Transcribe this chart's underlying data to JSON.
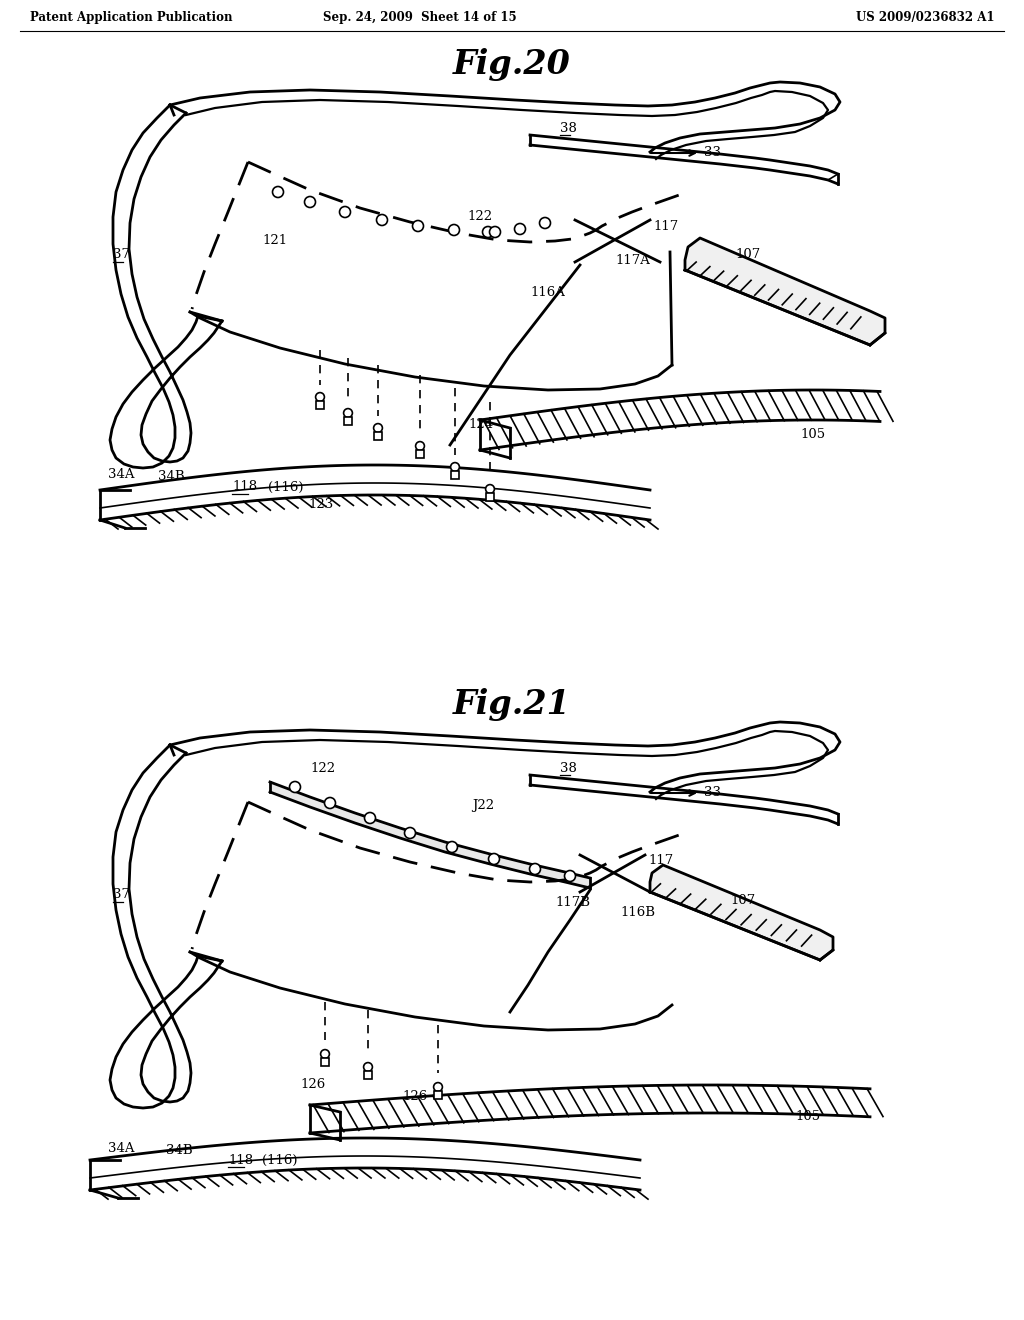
{
  "bg_color": "#ffffff",
  "line_color": "#000000",
  "header_left": "Patent Application Publication",
  "header_mid": "Sep. 24, 2009  Sheet 14 of 15",
  "header_right": "US 2009/0236832 A1",
  "fig1_title": "Fig.20",
  "fig2_title": "Fig.21"
}
